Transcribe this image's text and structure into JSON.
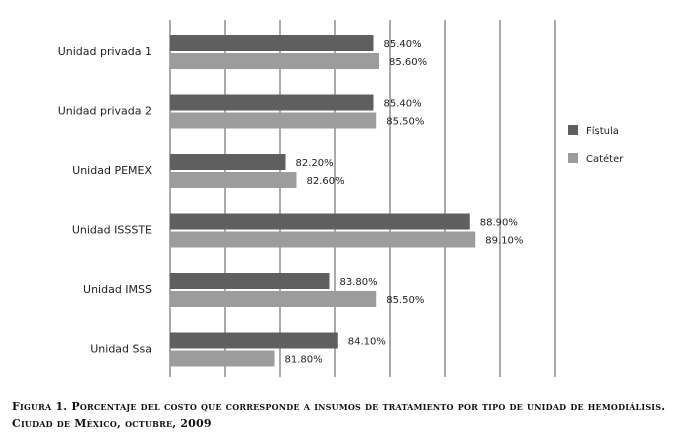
{
  "chart_data": {
    "type": "bar",
    "orientation": "horizontal",
    "categories": [
      "Unidad privada 1",
      "Unidad privada 2",
      "Unidad PEMEX",
      "Unidad ISSSTE",
      "Unidad IMSS",
      "Unidad Ssa"
    ],
    "series": [
      {
        "name": "Fístula",
        "color": "#5f5f5f",
        "values": [
          85.4,
          85.4,
          82.2,
          88.9,
          83.8,
          84.1
        ],
        "labels": [
          "85.40%",
          "85.40%",
          "82.20%",
          "88.90%",
          "83.80%",
          "84.10%"
        ]
      },
      {
        "name": "Catéter",
        "color": "#9c9c9c",
        "values": [
          85.6,
          85.5,
          82.6,
          89.1,
          85.5,
          81.8
        ],
        "labels": [
          "85.60%",
          "85.50%",
          "82.60%",
          "89.10%",
          "85.50%",
          "81.80%"
        ]
      }
    ],
    "xlim": [
      78,
      92
    ],
    "grid": true,
    "legend_position": "right"
  },
  "caption": {
    "line1": "Figura 1. Porcentaje del costo que corresponde a insumos de tratamiento por tipo de unidad de hemodiálisis.",
    "line2": "Ciudad de México, octubre, 2009"
  }
}
